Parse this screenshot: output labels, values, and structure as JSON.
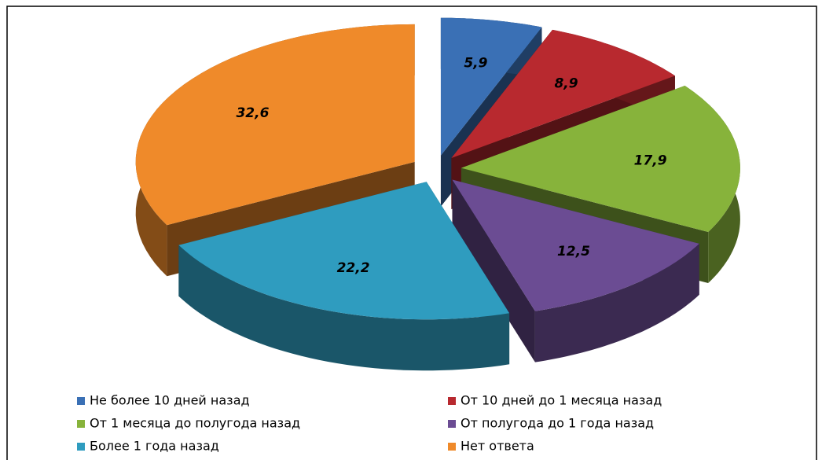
{
  "chart_data": {
    "type": "pie",
    "categories": [
      "Не более 10 дней назад",
      "От 10 дней до 1 месяца назад",
      "От 1 месяца до полугода назад",
      "От полугода до 1 года назад",
      "Более 1 года назад",
      "Нет ответа"
    ],
    "values": [
      5.9,
      8.9,
      17.9,
      12.5,
      22.2,
      32.6
    ],
    "value_labels": [
      "5,9",
      "8,9",
      "17,9",
      "12,5",
      "22,2",
      "32,6"
    ],
    "colors": [
      "#3a70b5",
      "#b8292f",
      "#87b33b",
      "#6b4c93",
      "#2f9cbf",
      "#ef8a2a"
    ],
    "legend": "bottom"
  }
}
